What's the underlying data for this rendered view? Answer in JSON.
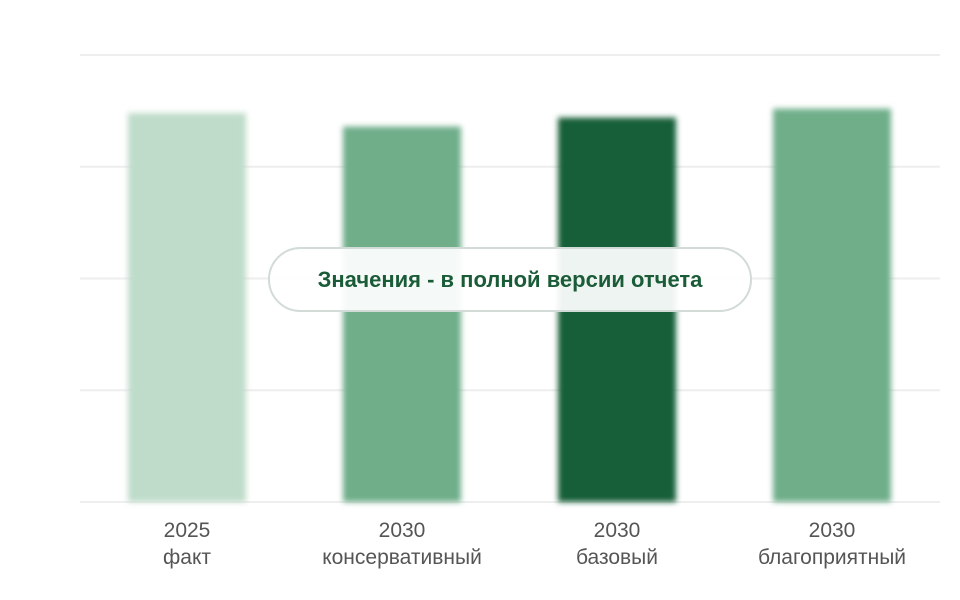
{
  "banner": {
    "text": "Значения - в полной версии отчета"
  },
  "chart_data": {
    "type": "bar",
    "title": "",
    "xlabel": "",
    "ylabel": "",
    "grid": true,
    "legend": "none",
    "ylim": [
      0,
      100
    ],
    "categories": [
      {
        "year": "2025",
        "scenario": "факт"
      },
      {
        "year": "2030",
        "scenario": "консервативный"
      },
      {
        "year": "2030",
        "scenario": "базовый"
      },
      {
        "year": "2030",
        "scenario": "благоприятный"
      }
    ],
    "values": [
      87,
      84,
      86,
      88
    ],
    "colors": [
      "#bfdbc9",
      "#6fae8a",
      "#175e38",
      "#6fae8a"
    ],
    "gridline_color": "#eeeeee"
  }
}
